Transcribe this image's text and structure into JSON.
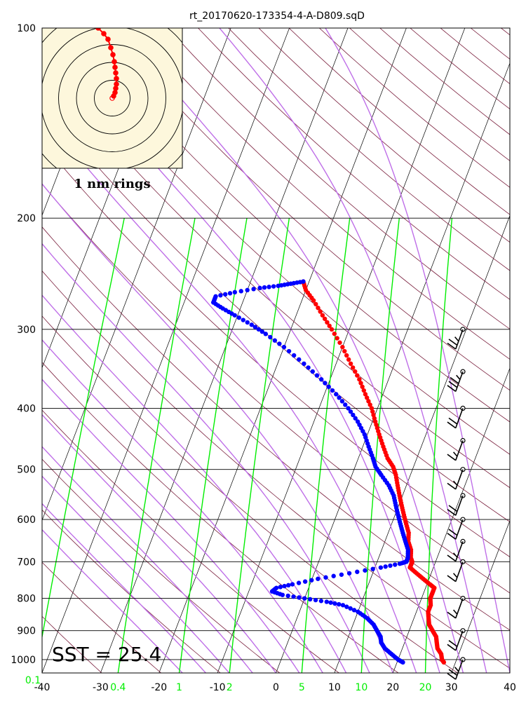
{
  "chart_data": {
    "type": "scatter",
    "subtype": "skew-t log-p sounding",
    "title": "rt_20170620-173354-4-A-D809.sqD",
    "x_axis": {
      "label": "",
      "ticks": [
        "-40",
        "-30",
        "-20",
        "-10",
        "0",
        "10",
        "20",
        "30",
        "40"
      ],
      "range": [
        -40,
        40
      ]
    },
    "y_axis": {
      "label": "",
      "scale": "log",
      "inverted": true,
      "ticks": [
        "100",
        "200",
        "300",
        "400",
        "500",
        "600",
        "700",
        "800",
        "900",
        "1000"
      ],
      "range": [
        100,
        1000
      ]
    },
    "mixing_ratio_ticks": [
      {
        "label": "0.1",
        "value": 0.1
      },
      {
        "label": "0.4",
        "value": 0.4
      },
      {
        "label": "1",
        "value": 1
      },
      {
        "label": "2",
        "value": 2
      },
      {
        "label": "5",
        "value": 5
      },
      {
        "label": "10",
        "value": 10
      },
      {
        "label": "20",
        "value": 20
      }
    ],
    "series": [
      {
        "name": "",
        "color": "#ff0000",
        "role": "temperature",
        "points": [
          {
            "p": 1010,
            "t": 28
          },
          {
            "p": 1000,
            "t": 27.5
          },
          {
            "p": 980,
            "t": 27
          },
          {
            "p": 960,
            "t": 26
          },
          {
            "p": 940,
            "t": 25.5
          },
          {
            "p": 920,
            "t": 25
          },
          {
            "p": 900,
            "t": 24
          },
          {
            "p": 880,
            "t": 23
          },
          {
            "p": 860,
            "t": 22.5
          },
          {
            "p": 840,
            "t": 22
          },
          {
            "p": 820,
            "t": 22
          },
          {
            "p": 800,
            "t": 21.5
          },
          {
            "p": 785,
            "t": 21.5
          },
          {
            "p": 770,
            "t": 21.5
          },
          {
            "p": 760,
            "t": 20.5
          },
          {
            "p": 745,
            "t": 19
          },
          {
            "p": 730,
            "t": 17.5
          },
          {
            "p": 715,
            "t": 16
          },
          {
            "p": 705,
            "t": 16
          },
          {
            "p": 700,
            "t": 16
          },
          {
            "p": 690,
            "t": 15.5
          },
          {
            "p": 670,
            "t": 15
          },
          {
            "p": 650,
            "t": 14
          },
          {
            "p": 630,
            "t": 13.5
          },
          {
            "p": 610,
            "t": 12.5
          },
          {
            "p": 590,
            "t": 11.5
          },
          {
            "p": 570,
            "t": 10.5
          },
          {
            "p": 550,
            "t": 9.5
          },
          {
            "p": 530,
            "t": 8.5
          },
          {
            "p": 510,
            "t": 7.5
          },
          {
            "p": 495,
            "t": 6.5
          },
          {
            "p": 480,
            "t": 5
          },
          {
            "p": 460,
            "t": 3.5
          },
          {
            "p": 440,
            "t": 2
          },
          {
            "p": 420,
            "t": 0.5
          },
          {
            "p": 400,
            "t": -1
          },
          {
            "p": 380,
            "t": -3
          },
          {
            "p": 360,
            "t": -5
          },
          {
            "p": 340,
            "t": -7.5
          },
          {
            "p": 320,
            "t": -10
          },
          {
            "p": 300,
            "t": -13
          },
          {
            "p": 285,
            "t": -15.5
          },
          {
            "p": 270,
            "t": -18
          },
          {
            "p": 260,
            "t": -20
          },
          {
            "p": 252,
            "t": -21
          }
        ]
      },
      {
        "name": "",
        "color": "#0000ff",
        "role": "dewpoint",
        "points": [
          {
            "p": 1010,
            "t": 21
          },
          {
            "p": 1000,
            "t": 20
          },
          {
            "p": 980,
            "t": 18.5
          },
          {
            "p": 960,
            "t": 17
          },
          {
            "p": 940,
            "t": 16
          },
          {
            "p": 920,
            "t": 15.5
          },
          {
            "p": 900,
            "t": 14.5
          },
          {
            "p": 880,
            "t": 13.5
          },
          {
            "p": 860,
            "t": 12
          },
          {
            "p": 840,
            "t": 10
          },
          {
            "p": 820,
            "t": 7
          },
          {
            "p": 810,
            "t": 4
          },
          {
            "p": 800,
            "t": 0
          },
          {
            "p": 790,
            "t": -4
          },
          {
            "p": 780,
            "t": -6
          },
          {
            "p": 770,
            "t": -5.5
          },
          {
            "p": 760,
            "t": -3
          },
          {
            "p": 745,
            "t": 1
          },
          {
            "p": 730,
            "t": 6
          },
          {
            "p": 715,
            "t": 11
          },
          {
            "p": 705,
            "t": 14
          },
          {
            "p": 700,
            "t": 15
          },
          {
            "p": 690,
            "t": 15
          },
          {
            "p": 670,
            "t": 14.5
          },
          {
            "p": 650,
            "t": 13.5
          },
          {
            "p": 630,
            "t": 12.5
          },
          {
            "p": 610,
            "t": 11.5
          },
          {
            "p": 590,
            "t": 10.5
          },
          {
            "p": 570,
            "t": 9.5
          },
          {
            "p": 550,
            "t": 8.5
          },
          {
            "p": 530,
            "t": 7
          },
          {
            "p": 510,
            "t": 5
          },
          {
            "p": 495,
            "t": 3.5
          },
          {
            "p": 480,
            "t": 2.5
          },
          {
            "p": 460,
            "t": 1
          },
          {
            "p": 440,
            "t": -0.5
          },
          {
            "p": 420,
            "t": -2.5
          },
          {
            "p": 400,
            "t": -5
          },
          {
            "p": 380,
            "t": -8
          },
          {
            "p": 360,
            "t": -11.5
          },
          {
            "p": 340,
            "t": -15.5
          },
          {
            "p": 320,
            "t": -20
          },
          {
            "p": 305,
            "t": -24
          },
          {
            "p": 295,
            "t": -27
          },
          {
            "p": 285,
            "t": -30.5
          },
          {
            "p": 278,
            "t": -33
          },
          {
            "p": 272,
            "t": -35
          },
          {
            "p": 266,
            "t": -35
          },
          {
            "p": 262,
            "t": -32
          },
          {
            "p": 258,
            "t": -28
          },
          {
            "p": 256,
            "t": -25
          },
          {
            "p": 254,
            "t": -23
          },
          {
            "p": 252,
            "t": -21
          }
        ]
      }
    ],
    "wind_barbs": [
      {
        "p": 300,
        "speed_kt": 25
      },
      {
        "p": 350,
        "speed_kt": 35
      },
      {
        "p": 400,
        "speed_kt": 20
      },
      {
        "p": 450,
        "speed_kt": 15
      },
      {
        "p": 500,
        "speed_kt": 15
      },
      {
        "p": 550,
        "speed_kt": 20
      },
      {
        "p": 600,
        "speed_kt": 20
      },
      {
        "p": 650,
        "speed_kt": 15
      },
      {
        "p": 700,
        "speed_kt": 15
      },
      {
        "p": 800,
        "speed_kt": 15
      },
      {
        "p": 900,
        "speed_kt": 20
      },
      {
        "p": 1000,
        "speed_kt": 25
      }
    ],
    "inset": {
      "label": "1 nm rings",
      "ring_count": 5,
      "background": "#fdf7dc",
      "track_color": "#ff0000"
    },
    "annotation": "SST = 25.4",
    "colors": {
      "isobar": "#000000",
      "isotherm": "#000000",
      "dry_adiabat": "#7a1f3d",
      "moist_adiabat": "#bf6fe8",
      "mixing_ratio": "#00ee00",
      "temperature": "#ff0000",
      "dewpoint": "#0000ff"
    },
    "grid": true
  }
}
